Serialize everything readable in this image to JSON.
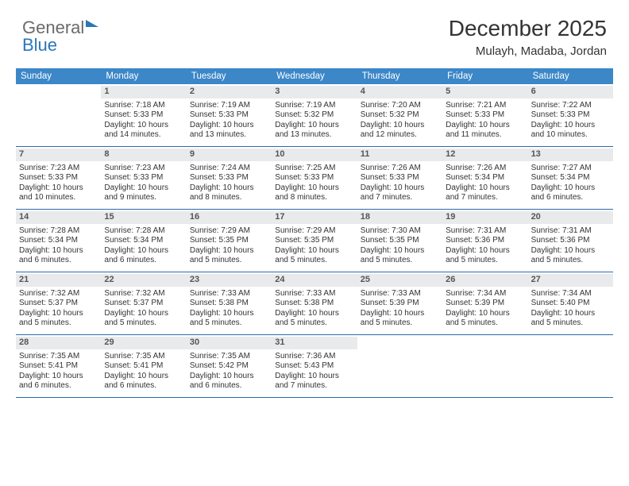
{
  "brand": {
    "part1": "General",
    "part2": "Blue"
  },
  "header": {
    "title": "December 2025",
    "location": "Mulayh, Madaba, Jordan"
  },
  "colors": {
    "header_bg": "#3b87c8",
    "header_text": "#ffffff",
    "daynum_bg": "#e9eaec",
    "daynum_text": "#555555",
    "rule": "#2a6aa8",
    "body_text": "#333333"
  },
  "day_names": [
    "Sunday",
    "Monday",
    "Tuesday",
    "Wednesday",
    "Thursday",
    "Friday",
    "Saturday"
  ],
  "start_offset": 1,
  "days": [
    {
      "n": 1,
      "sunrise": "7:18 AM",
      "sunset": "5:33 PM",
      "daylight": "10 hours and 14 minutes."
    },
    {
      "n": 2,
      "sunrise": "7:19 AM",
      "sunset": "5:33 PM",
      "daylight": "10 hours and 13 minutes."
    },
    {
      "n": 3,
      "sunrise": "7:19 AM",
      "sunset": "5:32 PM",
      "daylight": "10 hours and 13 minutes."
    },
    {
      "n": 4,
      "sunrise": "7:20 AM",
      "sunset": "5:32 PM",
      "daylight": "10 hours and 12 minutes."
    },
    {
      "n": 5,
      "sunrise": "7:21 AM",
      "sunset": "5:33 PM",
      "daylight": "10 hours and 11 minutes."
    },
    {
      "n": 6,
      "sunrise": "7:22 AM",
      "sunset": "5:33 PM",
      "daylight": "10 hours and 10 minutes."
    },
    {
      "n": 7,
      "sunrise": "7:23 AM",
      "sunset": "5:33 PM",
      "daylight": "10 hours and 10 minutes."
    },
    {
      "n": 8,
      "sunrise": "7:23 AM",
      "sunset": "5:33 PM",
      "daylight": "10 hours and 9 minutes."
    },
    {
      "n": 9,
      "sunrise": "7:24 AM",
      "sunset": "5:33 PM",
      "daylight": "10 hours and 8 minutes."
    },
    {
      "n": 10,
      "sunrise": "7:25 AM",
      "sunset": "5:33 PM",
      "daylight": "10 hours and 8 minutes."
    },
    {
      "n": 11,
      "sunrise": "7:26 AM",
      "sunset": "5:33 PM",
      "daylight": "10 hours and 7 minutes."
    },
    {
      "n": 12,
      "sunrise": "7:26 AM",
      "sunset": "5:34 PM",
      "daylight": "10 hours and 7 minutes."
    },
    {
      "n": 13,
      "sunrise": "7:27 AM",
      "sunset": "5:34 PM",
      "daylight": "10 hours and 6 minutes."
    },
    {
      "n": 14,
      "sunrise": "7:28 AM",
      "sunset": "5:34 PM",
      "daylight": "10 hours and 6 minutes."
    },
    {
      "n": 15,
      "sunrise": "7:28 AM",
      "sunset": "5:34 PM",
      "daylight": "10 hours and 6 minutes."
    },
    {
      "n": 16,
      "sunrise": "7:29 AM",
      "sunset": "5:35 PM",
      "daylight": "10 hours and 5 minutes."
    },
    {
      "n": 17,
      "sunrise": "7:29 AM",
      "sunset": "5:35 PM",
      "daylight": "10 hours and 5 minutes."
    },
    {
      "n": 18,
      "sunrise": "7:30 AM",
      "sunset": "5:35 PM",
      "daylight": "10 hours and 5 minutes."
    },
    {
      "n": 19,
      "sunrise": "7:31 AM",
      "sunset": "5:36 PM",
      "daylight": "10 hours and 5 minutes."
    },
    {
      "n": 20,
      "sunrise": "7:31 AM",
      "sunset": "5:36 PM",
      "daylight": "10 hours and 5 minutes."
    },
    {
      "n": 21,
      "sunrise": "7:32 AM",
      "sunset": "5:37 PM",
      "daylight": "10 hours and 5 minutes."
    },
    {
      "n": 22,
      "sunrise": "7:32 AM",
      "sunset": "5:37 PM",
      "daylight": "10 hours and 5 minutes."
    },
    {
      "n": 23,
      "sunrise": "7:33 AM",
      "sunset": "5:38 PM",
      "daylight": "10 hours and 5 minutes."
    },
    {
      "n": 24,
      "sunrise": "7:33 AM",
      "sunset": "5:38 PM",
      "daylight": "10 hours and 5 minutes."
    },
    {
      "n": 25,
      "sunrise": "7:33 AM",
      "sunset": "5:39 PM",
      "daylight": "10 hours and 5 minutes."
    },
    {
      "n": 26,
      "sunrise": "7:34 AM",
      "sunset": "5:39 PM",
      "daylight": "10 hours and 5 minutes."
    },
    {
      "n": 27,
      "sunrise": "7:34 AM",
      "sunset": "5:40 PM",
      "daylight": "10 hours and 5 minutes."
    },
    {
      "n": 28,
      "sunrise": "7:35 AM",
      "sunset": "5:41 PM",
      "daylight": "10 hours and 6 minutes."
    },
    {
      "n": 29,
      "sunrise": "7:35 AM",
      "sunset": "5:41 PM",
      "daylight": "10 hours and 6 minutes."
    },
    {
      "n": 30,
      "sunrise": "7:35 AM",
      "sunset": "5:42 PM",
      "daylight": "10 hours and 6 minutes."
    },
    {
      "n": 31,
      "sunrise": "7:36 AM",
      "sunset": "5:43 PM",
      "daylight": "10 hours and 7 minutes."
    }
  ],
  "labels": {
    "sunrise_prefix": "Sunrise: ",
    "sunset_prefix": "Sunset: ",
    "daylight_prefix": "Daylight: "
  }
}
